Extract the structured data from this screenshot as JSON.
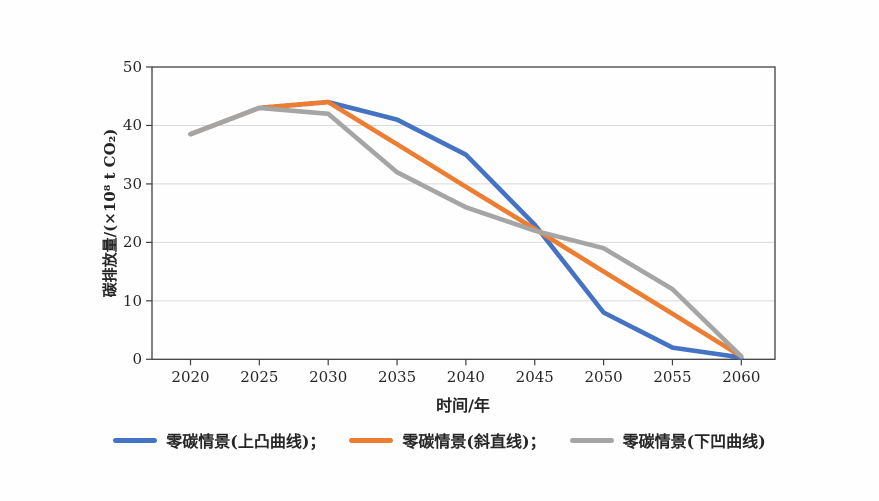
{
  "chart_data": {
    "type": "line",
    "title": "",
    "xlabel": "时间/年",
    "ylabel": "碳排放量/(×10⁸ t CO₂)",
    "x_categories": [
      "2020",
      "2025",
      "2030",
      "2035",
      "2040",
      "2045",
      "2050",
      "2055",
      "2060"
    ],
    "y_ticks": [
      "0",
      "10",
      "20",
      "30",
      "40",
      "50"
    ],
    "ylim": [
      0,
      50
    ],
    "grid": "horizontal-light",
    "legend_position": "bottom",
    "series": [
      {
        "name": "零碳情景(上凸曲线)",
        "color": "#4472C4",
        "values": [
          38.5,
          43,
          44,
          41,
          35,
          23,
          8,
          2,
          0.3
        ]
      },
      {
        "name": "零碳情景(斜直线)",
        "color": "#ED7D31",
        "values": [
          38.5,
          43,
          44,
          36.8,
          29.5,
          22.3,
          15,
          7.8,
          0.5
        ]
      },
      {
        "name": "零碳情景(下凹曲线)",
        "color": "#A5A5A5",
        "values": [
          38.5,
          43,
          42,
          32,
          26,
          22,
          19,
          12,
          0.5
        ]
      }
    ],
    "axis_color": "#404040",
    "gridline_color": "#d9d9d9"
  },
  "legend": {
    "items": [
      {
        "label": "零碳情景(上凸曲线)；",
        "color": "#4472C4"
      },
      {
        "label": "零碳情景(斜直线)；",
        "color": "#ED7D31"
      },
      {
        "label": "零碳情景(下凹曲线)",
        "color": "#A5A5A5"
      }
    ]
  }
}
